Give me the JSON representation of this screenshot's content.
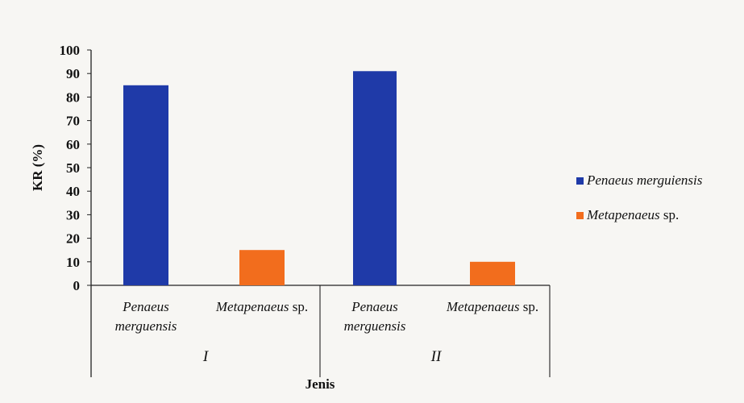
{
  "chart_data": {
    "type": "bar",
    "ylabel": "KR (%)",
    "xlabel": "Jenis",
    "ylim": [
      0,
      100
    ],
    "yticks": [
      0,
      10,
      20,
      30,
      40,
      50,
      60,
      70,
      80,
      90,
      100
    ],
    "groups": [
      {
        "label": "I",
        "categories": [
          {
            "name_line1": "Penaeus",
            "name_line2": "merguensis",
            "series": "Penaeus merguiensis",
            "value": 85
          },
          {
            "name_line1": "Metapenaeus",
            "name_suffix": "sp.",
            "series": "Metapenaeus sp.",
            "value": 15
          }
        ]
      },
      {
        "label": "II",
        "categories": [
          {
            "name_line1": "Penaeus",
            "name_line2": "merguensis",
            "series": "Penaeus merguiensis",
            "value": 91
          },
          {
            "name_line1": "Metapenaeus",
            "name_suffix": "sp.",
            "series": "Metapenaeus sp.",
            "value": 10
          }
        ]
      }
    ],
    "legend": [
      {
        "name": "Penaeus merguiensis",
        "color": "#1f3aa8"
      },
      {
        "name": "Metapenaeus",
        "suffix": "sp.",
        "color": "#f26d1d"
      }
    ],
    "legend_position": "right",
    "grid": false
  }
}
